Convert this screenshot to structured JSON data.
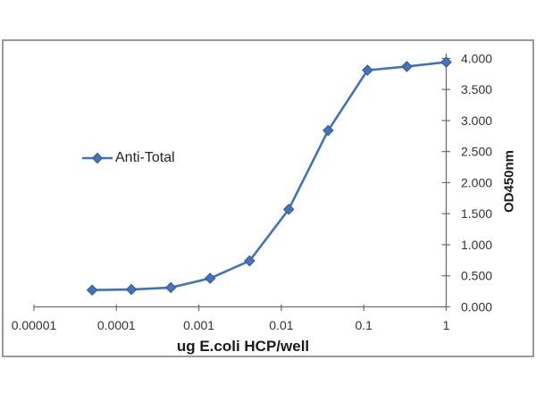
{
  "chart_data": {
    "type": "line",
    "title": "",
    "xlabel": "ug E.coli HCP/well",
    "ylabel": "OD450nm",
    "x_scale": "log",
    "xlim": [
      1e-05,
      1
    ],
    "ylim": [
      0,
      4
    ],
    "grid": false,
    "x_tick_values": [
      1e-05,
      0.0001,
      0.001,
      0.01,
      0.1,
      1
    ],
    "x_tick_labels": [
      "0.00001",
      "0.0001",
      "0.001",
      "0.01",
      "0.1",
      "1"
    ],
    "y_tick_values": [
      0,
      0.5,
      1,
      1.5,
      2,
      2.5,
      3,
      3.5,
      4
    ],
    "y_tick_labels": [
      "0.000",
      "0.500",
      "1.000",
      "1.500",
      "2.000",
      "2.500",
      "3.000",
      "3.500",
      "4.000"
    ],
    "legend": {
      "position": "left-middle",
      "entries": [
        "Anti-Total"
      ]
    },
    "series": [
      {
        "name": "Anti-Total",
        "color": "#4374b9",
        "marker_edge_color": "#30589c",
        "marker": "diamond",
        "x": [
          5.08e-05,
          0.000152,
          0.000457,
          0.00137,
          0.00412,
          0.0123,
          0.037,
          0.111,
          0.333,
          1
        ],
        "y": [
          0.27,
          0.28,
          0.31,
          0.46,
          0.74,
          1.57,
          2.84,
          3.81,
          3.87,
          3.94
        ]
      }
    ],
    "axis_color": "#6e6e6e",
    "frame_color": "#9a9a9a"
  }
}
